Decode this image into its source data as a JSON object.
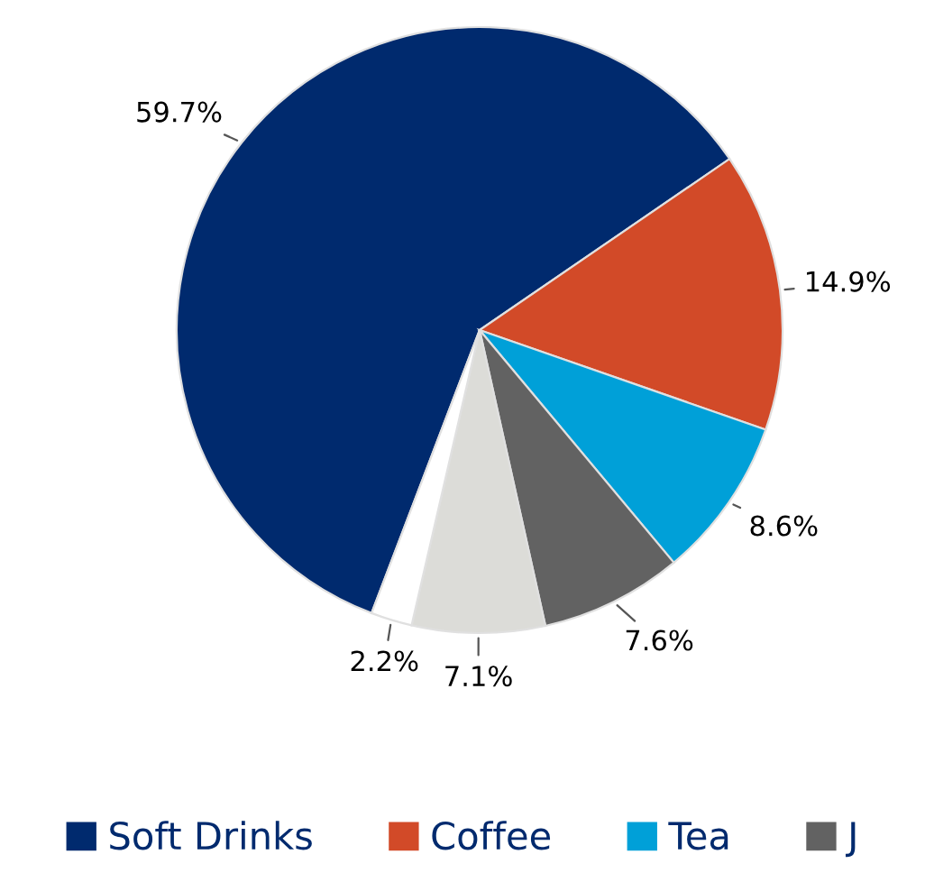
{
  "chart_data": {
    "type": "pie",
    "categories": [
      "Soft Drinks",
      "Coffee",
      "Tea",
      "J",
      null,
      null
    ],
    "values": [
      59.7,
      14.9,
      8.6,
      7.6,
      7.1,
      2.2
    ],
    "value_labels": [
      "59.7%",
      "14.9%",
      "8.6%",
      "7.6%",
      "7.1%",
      "2.2%"
    ],
    "colors": [
      "#002a6e",
      "#d24a28",
      "#00a0d8",
      "#626262",
      "#dcdcd8",
      "#ffffff"
    ],
    "legend": "bottom"
  }
}
